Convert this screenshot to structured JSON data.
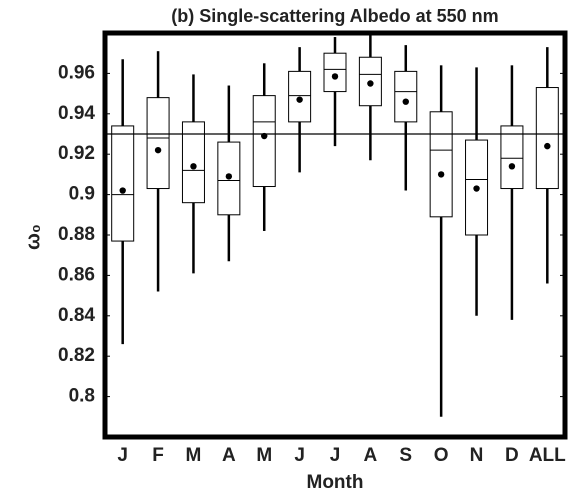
{
  "chart_data": {
    "type": "box",
    "title": "(b) Single-scattering Albedo at 550 nm",
    "x_label": "Month",
    "y_label": "ω₀",
    "categories": [
      "J",
      "F",
      "M",
      "A",
      "M",
      "J",
      "J",
      "A",
      "S",
      "O",
      "N",
      "D",
      "ALL"
    ],
    "whisker_low": [
      0.826,
      0.852,
      0.861,
      0.867,
      0.882,
      0.911,
      0.924,
      0.917,
      0.902,
      0.79,
      0.84,
      0.838,
      0.856
    ],
    "q1": [
      0.877,
      0.903,
      0.896,
      0.89,
      0.904,
      0.936,
      0.951,
      0.944,
      0.936,
      0.889,
      0.88,
      0.903,
      0.903
    ],
    "median": [
      0.9,
      0.928,
      0.912,
      0.907,
      0.936,
      0.949,
      0.962,
      0.9595,
      0.951,
      0.922,
      0.9075,
      0.918,
      0.93
    ],
    "q3": [
      0.934,
      0.948,
      0.936,
      0.926,
      0.949,
      0.961,
      0.97,
      0.968,
      0.961,
      0.941,
      0.927,
      0.934,
      0.953
    ],
    "whisker_high": [
      0.967,
      0.971,
      0.9595,
      0.954,
      0.965,
      0.973,
      0.978,
      0.979,
      0.974,
      0.964,
      0.963,
      0.964,
      0.973
    ],
    "mean": [
      0.902,
      0.922,
      0.914,
      0.909,
      0.929,
      0.947,
      0.9585,
      0.955,
      0.946,
      0.91,
      0.903,
      0.914,
      0.924
    ],
    "reference_line": 0.93,
    "color": "#000000",
    "ylim": [
      0.78,
      0.98
    ],
    "yticks": [
      0.8,
      0.82,
      0.84,
      0.86,
      0.88,
      0.9,
      0.92,
      0.94,
      0.96
    ],
    "grid": false
  }
}
